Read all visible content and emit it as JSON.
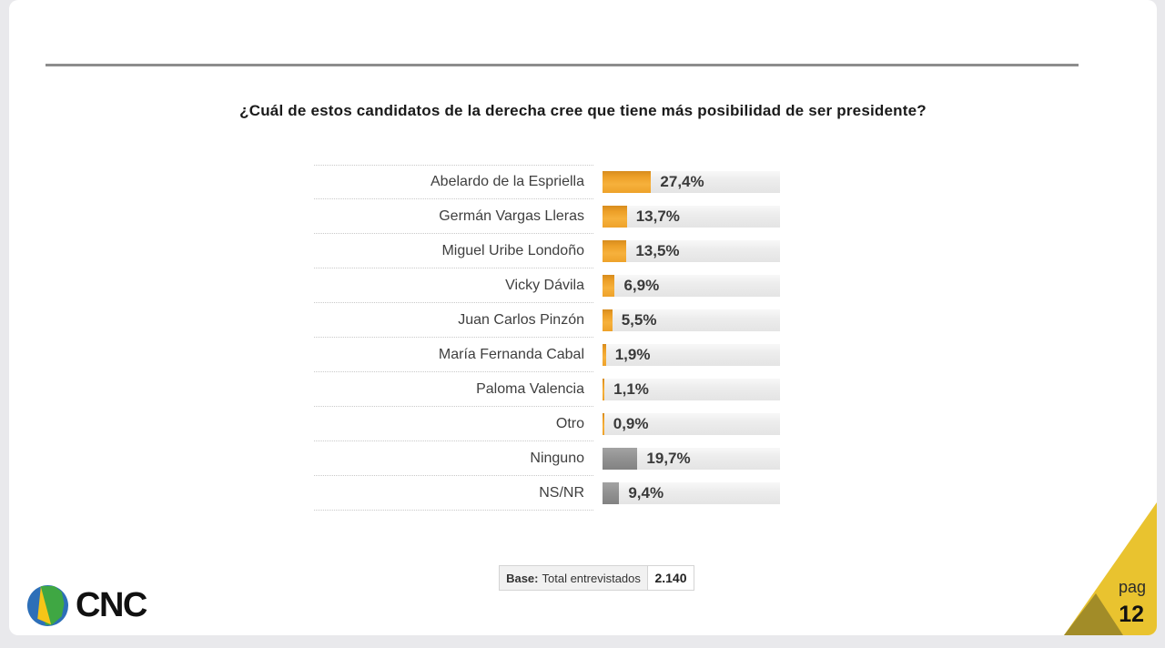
{
  "slide": {
    "title": "¿Cuál de estos candidatos de la derecha cree que tiene más posibilidad de ser presidente?",
    "page_label": "pag",
    "page_number": "12",
    "logo_text": "CNC",
    "base": {
      "label_bold": "Base:",
      "label": "Total entrevistados",
      "value": "2.140"
    }
  },
  "chart_data": {
    "type": "bar",
    "orientation": "horizontal",
    "title": "¿Cuál de estos candidatos de la derecha cree que tiene más posibilidad de ser presidente?",
    "xlabel": "",
    "ylabel": "",
    "xlim": [
      0,
      100
    ],
    "unit": "%",
    "grid": false,
    "legend": false,
    "categories": [
      "Abelardo de la Espriella",
      "Germán Vargas Lleras",
      "Miguel Uribe Londoño",
      "Vicky Dávila",
      "Juan Carlos Pinzón",
      "María Fernanda Cabal",
      "Paloma Valencia",
      "Otro",
      "Ninguno",
      "NS/NR"
    ],
    "values": [
      27.4,
      13.7,
      13.5,
      6.9,
      5.5,
      1.9,
      1.1,
      0.9,
      19.7,
      9.4
    ],
    "colors": {
      "candidate": "#f0a52e",
      "neutral": "#8f8f8f",
      "track": "#ebebeb"
    },
    "rows": [
      {
        "label": "Abelardo de la Espriella",
        "value": 27.4,
        "display": "27,4%",
        "color": "orange"
      },
      {
        "label": "Germán Vargas Lleras",
        "value": 13.7,
        "display": "13,7%",
        "color": "orange"
      },
      {
        "label": "Miguel Uribe Londoño",
        "value": 13.5,
        "display": "13,5%",
        "color": "orange"
      },
      {
        "label": "Vicky Dávila",
        "value": 6.9,
        "display": "6,9%",
        "color": "orange"
      },
      {
        "label": "Juan Carlos Pinzón",
        "value": 5.5,
        "display": "5,5%",
        "color": "orange"
      },
      {
        "label": "María Fernanda Cabal",
        "value": 1.9,
        "display": "1,9%",
        "color": "orange"
      },
      {
        "label": "Paloma Valencia",
        "value": 1.1,
        "display": "1,1%",
        "color": "orange"
      },
      {
        "label": "Otro",
        "value": 0.9,
        "display": "0,9%",
        "color": "orange"
      },
      {
        "label": "Ninguno",
        "value": 19.7,
        "display": "19,7%",
        "color": "gray"
      },
      {
        "label": "NS/NR",
        "value": 9.4,
        "display": "9,4%",
        "color": "gray"
      }
    ]
  }
}
